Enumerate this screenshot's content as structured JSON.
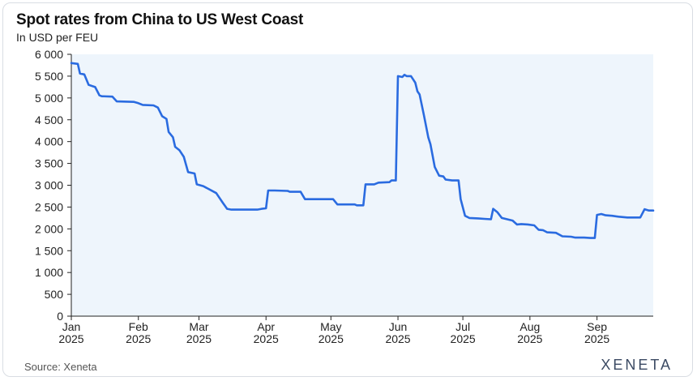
{
  "header": {
    "title": "Spot rates from China to US West Coast",
    "subtitle": "In USD per FEU"
  },
  "footer": {
    "source": "Source: Xeneta",
    "brand": "XENETA"
  },
  "colors": {
    "line": "#2a6be0",
    "plot_background": "#eef5fc",
    "axis": "#222222"
  },
  "chart_data": {
    "type": "line",
    "title": "Spot rates from China to US West Coast",
    "ylabel": "In USD per FEU",
    "xlabel": "",
    "ylim": [
      0,
      6000
    ],
    "xlim": [
      "2025-01-01",
      "2025-09-27"
    ],
    "grid": false,
    "y_ticks": [
      0,
      500,
      1000,
      1500,
      2000,
      2500,
      3000,
      3500,
      4000,
      4500,
      5000,
      5500,
      6000
    ],
    "y_tick_labels": [
      "0",
      "500",
      "1 000",
      "1 500",
      "2 000",
      "2 500",
      "3 000",
      "3 500",
      "4 000",
      "4 500",
      "5 000",
      "5 500",
      "6 000"
    ],
    "x_ticks": [
      {
        "date": "2025-01-01",
        "month": "Jan",
        "year": "2025"
      },
      {
        "date": "2025-02-01",
        "month": "Feb",
        "year": "2025"
      },
      {
        "date": "2025-03-01",
        "month": "Mar",
        "year": "2025"
      },
      {
        "date": "2025-04-01",
        "month": "Apr",
        "year": "2025"
      },
      {
        "date": "2025-05-01",
        "month": "May",
        "year": "2025"
      },
      {
        "date": "2025-06-01",
        "month": "Jun",
        "year": "2025"
      },
      {
        "date": "2025-07-01",
        "month": "Jul",
        "year": "2025"
      },
      {
        "date": "2025-08-01",
        "month": "Aug",
        "year": "2025"
      },
      {
        "date": "2025-09-01",
        "month": "Sep",
        "year": "2025"
      }
    ],
    "series": [
      {
        "points": [
          [
            "2025-01-01",
            5800
          ],
          [
            "2025-01-04",
            5780
          ],
          [
            "2025-01-05",
            5560
          ],
          [
            "2025-01-07",
            5540
          ],
          [
            "2025-01-09",
            5300
          ],
          [
            "2025-01-12",
            5250
          ],
          [
            "2025-01-14",
            5060
          ],
          [
            "2025-01-15",
            5040
          ],
          [
            "2025-01-20",
            5030
          ],
          [
            "2025-01-22",
            4920
          ],
          [
            "2025-01-30",
            4910
          ],
          [
            "2025-02-01",
            4880
          ],
          [
            "2025-02-03",
            4840
          ],
          [
            "2025-02-08",
            4830
          ],
          [
            "2025-02-10",
            4780
          ],
          [
            "2025-02-12",
            4580
          ],
          [
            "2025-02-14",
            4520
          ],
          [
            "2025-02-15",
            4220
          ],
          [
            "2025-02-17",
            4100
          ],
          [
            "2025-02-18",
            3880
          ],
          [
            "2025-02-20",
            3800
          ],
          [
            "2025-02-22",
            3650
          ],
          [
            "2025-02-24",
            3300
          ],
          [
            "2025-02-27",
            3270
          ],
          [
            "2025-02-28",
            3020
          ],
          [
            "2025-03-03",
            2980
          ],
          [
            "2025-03-06",
            2900
          ],
          [
            "2025-03-09",
            2820
          ],
          [
            "2025-03-12",
            2600
          ],
          [
            "2025-03-14",
            2460
          ],
          [
            "2025-03-16",
            2440
          ],
          [
            "2025-03-28",
            2440
          ],
          [
            "2025-03-30",
            2460
          ],
          [
            "2025-04-01",
            2470
          ],
          [
            "2025-04-02",
            2880
          ],
          [
            "2025-04-05",
            2880
          ],
          [
            "2025-04-11",
            2870
          ],
          [
            "2025-04-12",
            2850
          ],
          [
            "2025-04-17",
            2850
          ],
          [
            "2025-04-19",
            2680
          ],
          [
            "2025-05-02",
            2680
          ],
          [
            "2025-05-04",
            2560
          ],
          [
            "2025-05-12",
            2560
          ],
          [
            "2025-05-13",
            2540
          ],
          [
            "2025-05-16",
            2540
          ],
          [
            "2025-05-17",
            3020
          ],
          [
            "2025-05-21",
            3020
          ],
          [
            "2025-05-23",
            3060
          ],
          [
            "2025-05-28",
            3070
          ],
          [
            "2025-05-29",
            3110
          ],
          [
            "2025-05-31",
            3110
          ],
          [
            "2025-06-01",
            5500
          ],
          [
            "2025-06-03",
            5480
          ],
          [
            "2025-06-04",
            5530
          ],
          [
            "2025-06-05",
            5500
          ],
          [
            "2025-06-07",
            5500
          ],
          [
            "2025-06-09",
            5350
          ],
          [
            "2025-06-10",
            5150
          ],
          [
            "2025-06-11",
            5080
          ],
          [
            "2025-06-13",
            4600
          ],
          [
            "2025-06-15",
            4100
          ],
          [
            "2025-06-16",
            3940
          ],
          [
            "2025-06-18",
            3420
          ],
          [
            "2025-06-20",
            3220
          ],
          [
            "2025-06-22",
            3200
          ],
          [
            "2025-06-23",
            3130
          ],
          [
            "2025-06-26",
            3110
          ],
          [
            "2025-06-29",
            3110
          ],
          [
            "2025-06-30",
            2680
          ],
          [
            "2025-07-02",
            2300
          ],
          [
            "2025-07-04",
            2250
          ],
          [
            "2025-07-08",
            2240
          ],
          [
            "2025-07-11",
            2230
          ],
          [
            "2025-07-14",
            2220
          ],
          [
            "2025-07-15",
            2460
          ],
          [
            "2025-07-17",
            2380
          ],
          [
            "2025-07-19",
            2250
          ],
          [
            "2025-07-24",
            2190
          ],
          [
            "2025-07-26",
            2100
          ],
          [
            "2025-07-28",
            2110
          ],
          [
            "2025-07-31",
            2100
          ],
          [
            "2025-08-03",
            2080
          ],
          [
            "2025-08-05",
            1980
          ],
          [
            "2025-08-07",
            1970
          ],
          [
            "2025-08-09",
            1920
          ],
          [
            "2025-08-13",
            1910
          ],
          [
            "2025-08-16",
            1830
          ],
          [
            "2025-08-20",
            1820
          ],
          [
            "2025-08-22",
            1800
          ],
          [
            "2025-08-26",
            1800
          ],
          [
            "2025-08-29",
            1790
          ],
          [
            "2025-08-31",
            1790
          ],
          [
            "2025-09-01",
            2320
          ],
          [
            "2025-09-03",
            2340
          ],
          [
            "2025-09-05",
            2310
          ],
          [
            "2025-09-08",
            2300
          ],
          [
            "2025-09-11",
            2280
          ],
          [
            "2025-09-15",
            2260
          ],
          [
            "2025-09-21",
            2260
          ],
          [
            "2025-09-23",
            2450
          ],
          [
            "2025-09-25",
            2420
          ],
          [
            "2025-09-27",
            2420
          ]
        ]
      }
    ]
  }
}
